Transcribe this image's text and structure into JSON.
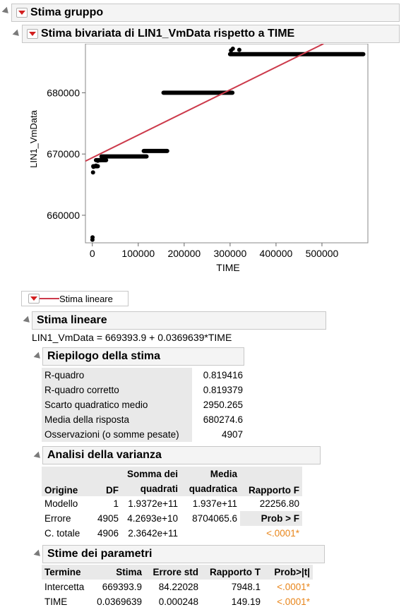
{
  "outline": {
    "group_title": "Stima gruppo",
    "bivariate_title": "Stima bivariata di LIN1_VmData rispetto a TIME"
  },
  "chart_data": {
    "type": "scatter",
    "xlabel": "TIME",
    "ylabel": "LIN1_VmData",
    "xlim": [
      -15000,
      600000
    ],
    "ylim": [
      655500,
      688000
    ],
    "x_ticks": [
      "0",
      "100000",
      "200000",
      "300000",
      "400000",
      "500000"
    ],
    "x_tick_values": [
      0,
      100000,
      200000,
      300000,
      400000,
      500000
    ],
    "y_ticks": [
      "660000",
      "670000",
      "680000"
    ],
    "y_tick_values": [
      660000,
      670000,
      680000
    ],
    "points": [
      [
        200,
        656000
      ],
      [
        500,
        656400
      ],
      [
        1500,
        667000
      ],
      [
        2500,
        667900
      ],
      [
        4000,
        668000
      ],
      [
        8000,
        668100
      ],
      [
        12000,
        668900
      ],
      [
        15000,
        669000
      ],
      [
        18000,
        669000
      ],
      [
        22000,
        669300
      ]
    ],
    "segments": [
      {
        "x0": 2000,
        "x1": 12000,
        "y": 668000
      },
      {
        "x0": 8000,
        "x1": 30000,
        "y": 669000
      },
      {
        "x0": 20000,
        "x1": 118000,
        "y": 669600
      },
      {
        "x0": 112000,
        "x1": 163000,
        "y": 670500
      },
      {
        "x0": 155000,
        "x1": 305000,
        "y": 680000
      },
      {
        "x0": 300000,
        "x1": 590000,
        "y": 686300
      }
    ],
    "fit_line": {
      "intercept": 669393.9,
      "slope": 0.0369639,
      "color": "#cc3a4b"
    }
  },
  "legend": {
    "label": "Stima lineare"
  },
  "linear_fit": {
    "title": "Stima lineare",
    "equation": "LIN1_VmData = 669393.9 + 0.0369639*TIME"
  },
  "summary": {
    "title": "Riepilogo della stima",
    "rows": [
      {
        "label": "R-quadro",
        "value": "0.819416"
      },
      {
        "label": "R-quadro corretto",
        "value": "0.819379"
      },
      {
        "label": "Scarto quadratico medio",
        "value": "2950.265"
      },
      {
        "label": "Media della risposta",
        "value": "680274.6"
      },
      {
        "label": "Osservazioni (o somme pesate)",
        "value": "4907"
      }
    ]
  },
  "anova": {
    "title": "Analisi della varianza",
    "headers": {
      "origin": "Origine",
      "df": "DF",
      "ss_1": "Somma dei",
      "ss_2": "quadrati",
      "ms_1": "Media",
      "ms_2": "quadratica",
      "f": "Rapporto F"
    },
    "rows": [
      {
        "origin": "Modello",
        "df": "1",
        "ss": "1.9372e+11",
        "ms": "1.937e+11",
        "f": "22256.80"
      },
      {
        "origin": "Errore",
        "df": "4905",
        "ss": "4.2693e+10",
        "ms": "8704065.6",
        "f": "Prob > F"
      },
      {
        "origin": "C. totale",
        "df": "4906",
        "ss": "2.3642e+11",
        "ms": "",
        "f": "<.0001*"
      }
    ]
  },
  "params": {
    "title": "Stime dei parametri",
    "headers": {
      "term": "Termine",
      "est": "Stima",
      "se": "Errore std",
      "t": "Rapporto T",
      "p": "Prob>|t|"
    },
    "rows": [
      {
        "term": "Intercetta",
        "est": "669393.9",
        "se": "84.22028",
        "t": "7948.1",
        "p": "<.0001*"
      },
      {
        "term": "TIME",
        "est": "0.0369639",
        "se": "0.000248",
        "t": "149.19",
        "p": "<.0001*"
      }
    ]
  },
  "colors": {
    "fit_line": "#cc3a4b",
    "significant": "#e8851a",
    "header_bg": "#f4f4f4"
  }
}
